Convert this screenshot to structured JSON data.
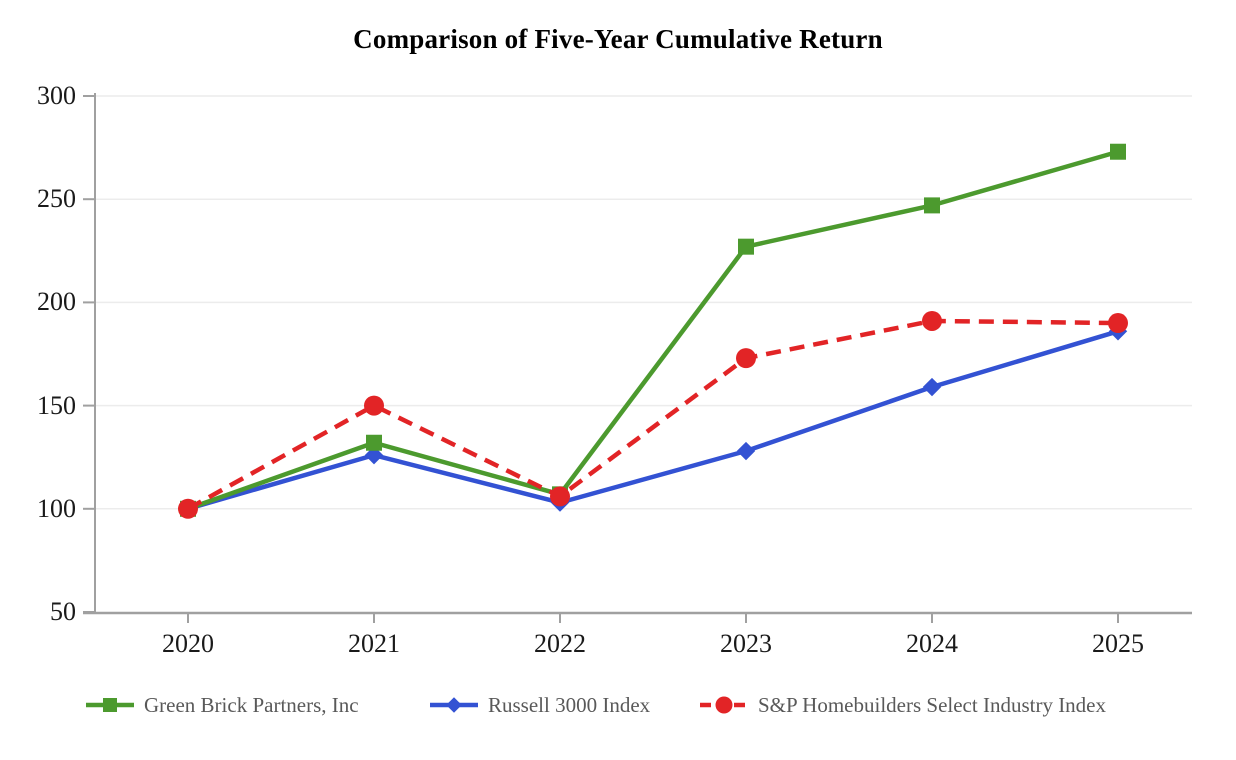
{
  "page": {
    "background": "#ffffff"
  },
  "chart_data": {
    "type": "line",
    "title": "Comparison of Five-Year Cumulative Return",
    "categories": [
      "2020",
      "2021",
      "2022",
      "2023",
      "2024",
      "2025"
    ],
    "y_ticks": [
      50,
      100,
      150,
      200,
      250,
      300
    ],
    "ylim": [
      50,
      300
    ],
    "grid": true,
    "legend_position": "bottom",
    "series": [
      {
        "name": "Green Brick Partners, Inc",
        "color": "#4C9A2E",
        "marker": "square",
        "line_style": "solid",
        "values": [
          100,
          132,
          107,
          227,
          247,
          273
        ]
      },
      {
        "name": "Russell 3000 Index",
        "color": "#3352D3",
        "marker": "diamond",
        "line_style": "solid",
        "values": [
          100,
          126,
          103,
          128,
          159,
          186
        ]
      },
      {
        "name": "S&P Homebuilders Select Industry Index",
        "color": "#E22426",
        "marker": "circle",
        "line_style": "dashed",
        "values": [
          100,
          150,
          106,
          173,
          191,
          190
        ]
      }
    ],
    "style_colors": {
      "grid": "#ECECEC",
      "axis": "#A0A0A0",
      "tick_label": "#1a1a1a",
      "legend_text": "#595959",
      "title": "#000000"
    }
  }
}
